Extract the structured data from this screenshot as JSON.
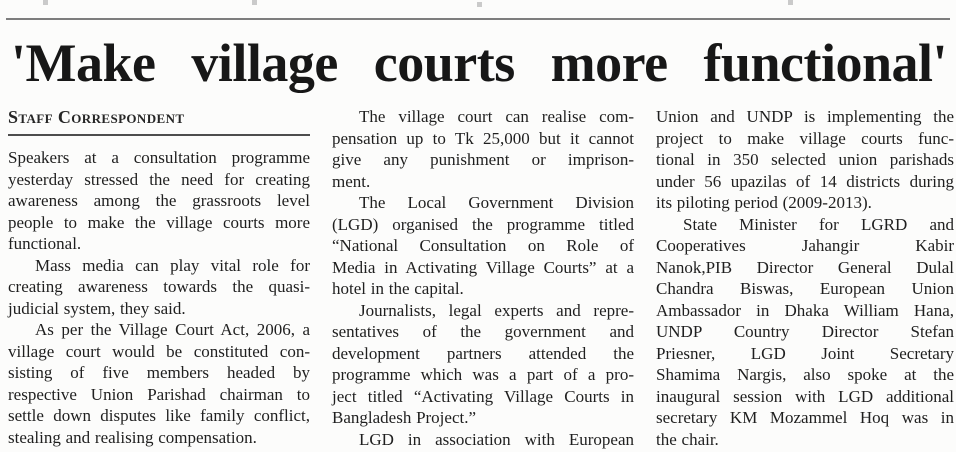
{
  "article": {
    "headline": "'Make village courts more functional'",
    "byline": "Staff Correspondent",
    "columns": [
      {
        "paragraphs": [
          {
            "indent": false,
            "flow": false,
            "lines": [
              "Speakers at a consultation programme",
              "yesterday stressed the need for creating",
              "awareness among the grassroots level",
              "people to make the village courts more",
              "functional."
            ]
          },
          {
            "indent": true,
            "flow": false,
            "lines": [
              "Mass media can play vital role for",
              "creating awareness towards the quasi-",
              "judicial system, they said."
            ]
          },
          {
            "indent": true,
            "flow": false,
            "lines": [
              "As per the Village Court Act, 2006, a",
              "village court would be constituted con-",
              "sisting of five members headed by",
              "respective Union Parishad chairman to",
              "settle down disputes like family conflict,",
              "stealing and realising compensation."
            ]
          }
        ]
      },
      {
        "paragraphs": [
          {
            "indent": true,
            "flow": false,
            "lines": [
              "The village court can realise com-",
              "pensation up to Tk 25,000 but it cannot",
              "give any punishment or imprison-",
              "ment."
            ]
          },
          {
            "indent": true,
            "flow": false,
            "lines": [
              "The Local Government Division",
              "(LGD) organised the programme titled",
              "“National Consultation on Role of",
              "Media in Activating Village Courts” at a",
              "hotel in the capital."
            ]
          },
          {
            "indent": true,
            "flow": false,
            "lines": [
              "Journalists, legal experts and repre-",
              "sentatives of the government and",
              "development partners attended the",
              "programme which was a part of a pro-",
              "ject titled “Activating Village Courts in",
              "Bangladesh Project.”"
            ]
          },
          {
            "indent": true,
            "flow": true,
            "lines": [
              "LGD in association with European"
            ]
          }
        ]
      },
      {
        "paragraphs": [
          {
            "indent": false,
            "flow": false,
            "lines": [
              "Union and UNDP is implementing the",
              "project to make village courts func-",
              "tional in 350 selected union parishads",
              "under 56 upazilas of 14 districts during",
              "its piloting period (2009-2013)."
            ]
          },
          {
            "indent": true,
            "flow": false,
            "lines": [
              "State Minister for LGRD and",
              "Cooperatives Jahangir Kabir",
              "Nanok,PIB Director General Dulal",
              "Chandra Biswas, European Union",
              "Ambassador in Dhaka William Hana,",
              "UNDP Country Director Stefan",
              "Priesner, LGD Joint Secretary",
              "Shamima Nargis, also spoke at the",
              "inaugural session with LGD additional",
              "secretary KM Mozammel Hoq was in",
              "the chair."
            ]
          }
        ]
      }
    ]
  }
}
